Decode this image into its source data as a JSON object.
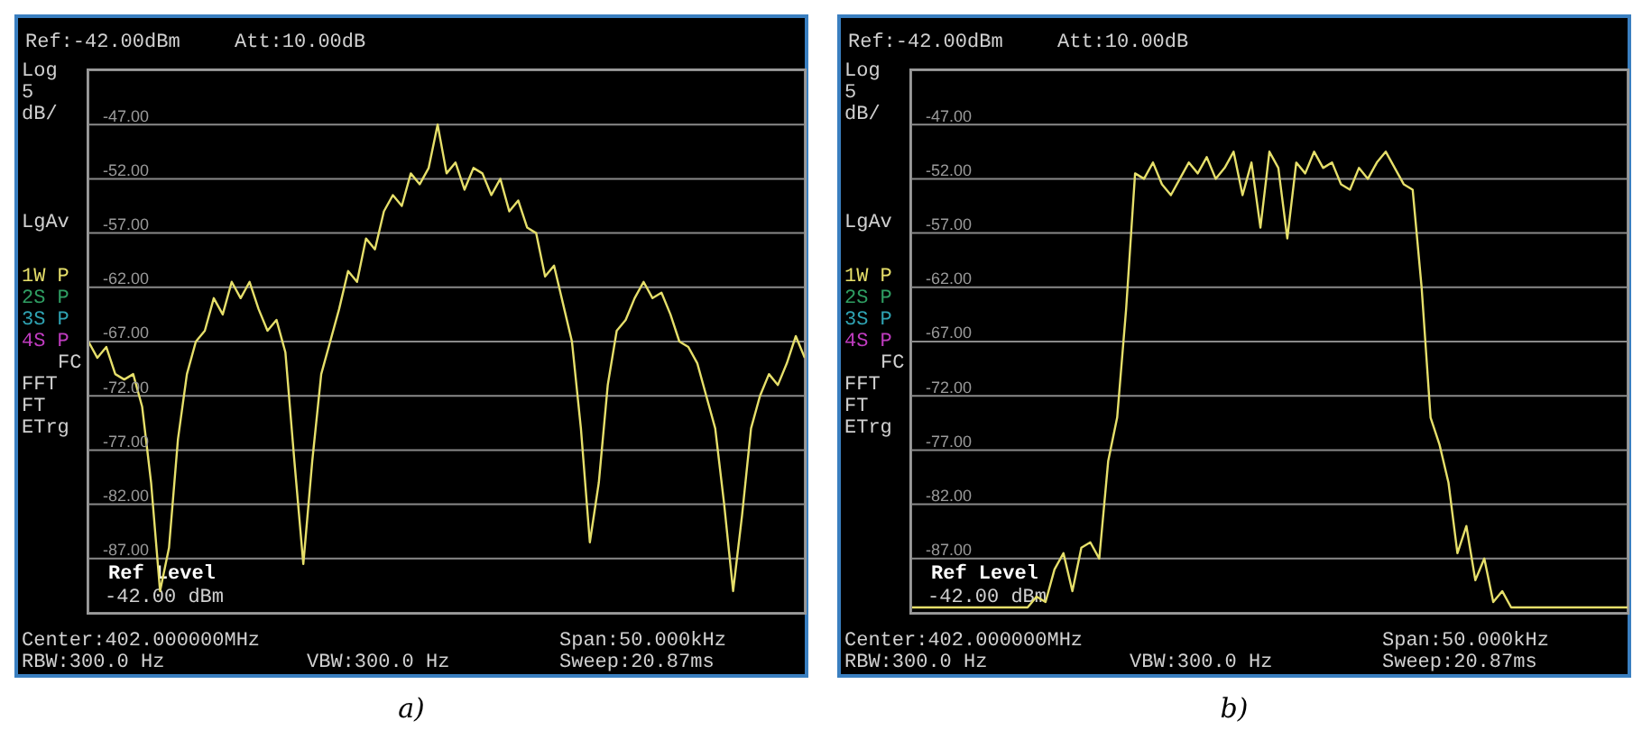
{
  "chart_data": [
    {
      "type": "line",
      "categories": [
        null,
        null,
        null,
        null,
        null,
        null,
        null,
        null,
        null,
        null,
        null,
        null,
        null,
        null,
        null,
        null,
        null,
        null,
        null,
        null,
        null,
        null,
        null,
        null,
        null,
        null,
        null,
        null,
        null,
        null,
        null,
        null,
        null,
        null,
        null,
        null,
        null,
        null,
        null,
        null,
        null,
        null,
        null,
        null,
        null,
        null,
        null,
        null,
        null,
        null,
        null,
        null,
        null,
        null,
        null,
        null,
        null,
        null,
        null,
        null,
        null,
        null,
        null,
        null,
        null,
        null,
        null,
        null,
        null,
        null,
        null,
        null,
        null,
        null,
        null,
        null,
        null,
        null,
        null,
        null,
        null
      ],
      "series": [
        {
          "color": "#e6df6a",
          "values": [
            -67,
            -68.5,
            -67.5,
            -70,
            -70.5,
            -70,
            -73,
            -80,
            -90,
            -86,
            -76,
            -70,
            -67,
            -66,
            -63,
            -64.5,
            -61.5,
            -63,
            -61.5,
            -64,
            -66,
            -65,
            -68,
            -78,
            -87.5,
            -78,
            -70,
            -67,
            -64,
            -60.5,
            -61.5,
            -57.5,
            -58.5,
            -55,
            -53.5,
            -54.5,
            -51.5,
            -52.5,
            -51,
            -47,
            -51.5,
            -50.5,
            -53,
            -51,
            -51.5,
            -53.5,
            -52,
            -55,
            -54,
            -56.5,
            -57,
            -61,
            -60,
            -63.5,
            -67,
            -75,
            -85.5,
            -80,
            -71,
            -66,
            -65,
            -63,
            -61.5,
            -63,
            -62.5,
            -64.5,
            -67,
            -67.5,
            -69,
            -72,
            -75,
            -82,
            -90,
            -83,
            -75,
            -72,
            -70,
            -71,
            -69,
            -66.5,
            -68.5
          ]
        }
      ],
      "ylim": [
        -92,
        -42
      ],
      "yticks": [
        {
          "value": -42,
          "label": null
        },
        {
          "value": -47,
          "label": "-47.00"
        },
        {
          "value": -52,
          "label": "-52.00"
        },
        {
          "value": -57,
          "label": "-57.00"
        },
        {
          "value": -62,
          "label": "-62.00"
        },
        {
          "value": -67,
          "label": "-67.00"
        },
        {
          "value": -72,
          "label": "-72.00"
        },
        {
          "value": -77,
          "label": "-77.00"
        },
        {
          "value": -82,
          "label": "-82.00"
        },
        {
          "value": -87,
          "label": "-87.00"
        },
        {
          "value": -92,
          "label": null
        }
      ],
      "tick_labels": "y",
      "grid": true,
      "legend": false,
      "marker": "none",
      "line_style": "solid",
      "annotations": [
        "Ref:-42.00dBm",
        "Att:10.00dB",
        "Log",
        "5",
        "dB/",
        "LgAv",
        "1W P",
        "2S P",
        "3S P",
        "4S P",
        "FC",
        "FFT",
        "FT",
        "ETrg",
        "Ref Level",
        "-42.00 dBm",
        "Center:402.000000MHz",
        "Span:50.000kHz",
        "RBW:300.0 Hz",
        "VBW:300.0 Hz",
        "Sweep:20.87ms",
        "a)"
      ]
    },
    {
      "type": "line",
      "categories": [
        null,
        null,
        null,
        null,
        null,
        null,
        null,
        null,
        null,
        null,
        null,
        null,
        null,
        null,
        null,
        null,
        null,
        null,
        null,
        null,
        null,
        null,
        null,
        null,
        null,
        null,
        null,
        null,
        null,
        null,
        null,
        null,
        null,
        null,
        null,
        null,
        null,
        null,
        null,
        null,
        null,
        null,
        null,
        null,
        null,
        null,
        null,
        null,
        null,
        null,
        null,
        null,
        null,
        null,
        null,
        null,
        null,
        null,
        null,
        null,
        null,
        null,
        null,
        null,
        null,
        null,
        null,
        null,
        null,
        null,
        null,
        null,
        null,
        null,
        null,
        null,
        null,
        null,
        null,
        null,
        null
      ],
      "series": [
        {
          "color": "#e6df6a",
          "values": [
            -91.5,
            -91.5,
            -91.5,
            -91.5,
            -91.5,
            -91.5,
            -91.5,
            -91.5,
            -91.5,
            -91.5,
            -91.5,
            -91.5,
            -91.5,
            -91.5,
            -90.5,
            -91,
            -88,
            -86.5,
            -90,
            -86,
            -85.5,
            -87,
            -78,
            -74,
            -64,
            -51.5,
            -52,
            -50.5,
            -52.5,
            -53.5,
            -52,
            -50.5,
            -51.5,
            -50,
            -52,
            -51,
            -49.5,
            -53.5,
            -50.5,
            -56.5,
            -49.5,
            -51,
            -57.5,
            -50.5,
            -51.5,
            -49.5,
            -51,
            -50.5,
            -52.5,
            -53,
            -51,
            -52,
            -50.5,
            -49.5,
            -51,
            -52.5,
            -53,
            -62,
            -74,
            -76.5,
            -80,
            -86.5,
            -84,
            -89,
            -87,
            -91,
            -90,
            -91.5,
            -91.5,
            -91.5,
            -91.5,
            -91.5,
            -91.5,
            -91.5,
            -91.5,
            -91.5,
            -91.5,
            -91.5,
            -91.5,
            -91.5,
            -91.5
          ]
        }
      ],
      "ylim": [
        -92,
        -42
      ],
      "yticks": [
        {
          "value": -42,
          "label": null
        },
        {
          "value": -47,
          "label": "-47.00"
        },
        {
          "value": -52,
          "label": "-52.00"
        },
        {
          "value": -57,
          "label": "-57.00"
        },
        {
          "value": -62,
          "label": "-62.00"
        },
        {
          "value": -67,
          "label": "-67.00"
        },
        {
          "value": -72,
          "label": "-72.00"
        },
        {
          "value": -77,
          "label": "-77.00"
        },
        {
          "value": -82,
          "label": "-82.00"
        },
        {
          "value": -87,
          "label": "-87.00"
        },
        {
          "value": -92,
          "label": null
        }
      ],
      "tick_labels": "y",
      "grid": true,
      "legend": false,
      "marker": "none",
      "line_style": "solid",
      "annotations": [
        "Ref:-42.00dBm",
        "Att:10.00dB",
        "Log",
        "5",
        "dB/",
        "LgAv",
        "1W P",
        "2S P",
        "3S P",
        "4S P",
        "FC",
        "FFT",
        "FT",
        "ETrg",
        "Ref Level",
        "-42.00 dBm",
        "Center:402.000000MHz",
        "Span:50.000kHz",
        "RBW:300.0 Hz",
        "VBW:300.0 Hz",
        "Sweep:20.87ms",
        "b)"
      ]
    }
  ]
}
